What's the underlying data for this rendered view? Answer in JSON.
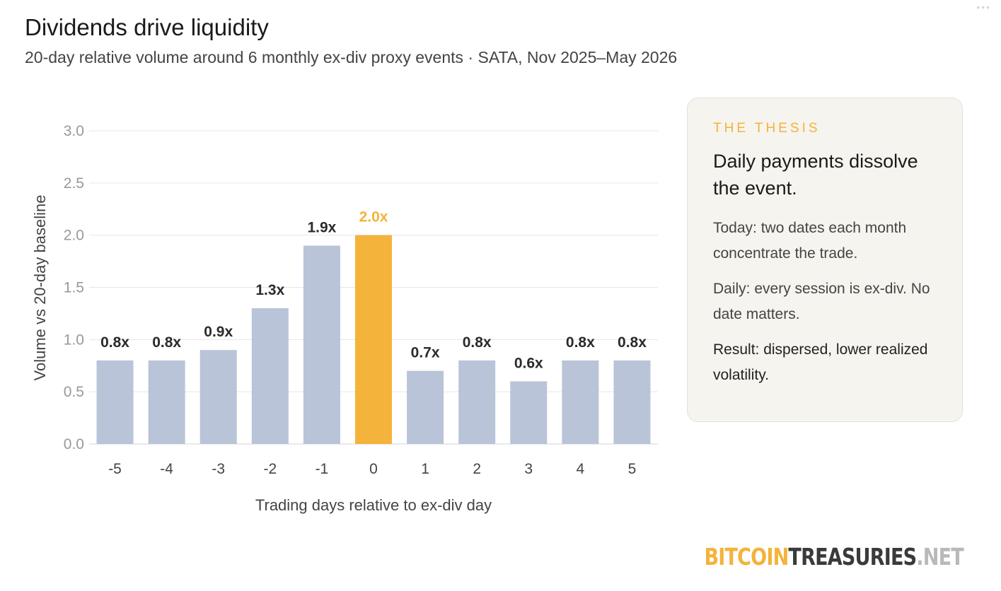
{
  "header": {
    "title": "Dividends drive liquidity",
    "subtitle": "20-day relative volume around 6 monthly ex-div proxy events · SATA, Nov 2025–May 2026"
  },
  "chart_data": {
    "type": "bar",
    "categories": [
      "-5",
      "-4",
      "-3",
      "-2",
      "-1",
      "0",
      "1",
      "2",
      "3",
      "4",
      "5"
    ],
    "values": [
      0.8,
      0.8,
      0.9,
      1.3,
      1.9,
      2.0,
      0.7,
      0.8,
      0.6,
      0.8,
      0.8
    ],
    "data_labels": [
      "0.8x",
      "0.8x",
      "0.9x",
      "1.3x",
      "1.9x",
      "2.0x",
      "0.7x",
      "0.8x",
      "0.6x",
      "0.8x",
      "0.8x"
    ],
    "highlight_category": "0",
    "xlabel": "Trading days relative to ex-div day",
    "ylabel": "Volume vs 20-day baseline",
    "ylim": [
      0,
      3.0
    ],
    "yticks": [
      "0.0",
      "0.5",
      "1.0",
      "1.5",
      "2.0",
      "2.5",
      "3.0"
    ],
    "grid": true,
    "colors": {
      "bar": "#b9c4d8",
      "highlight": "#f4b33a",
      "grid": "#e6e6e6"
    }
  },
  "thesis": {
    "eyebrow": "THE THESIS",
    "headline": "Daily payments dissolve the event.",
    "para1": "Today: two dates each month concentrate the trade.",
    "para2": "Daily: every session is ex-div. No date matters.",
    "para3": "Result: dispersed, lower realized volatility."
  },
  "brand": {
    "part1": "BITCOIN",
    "part2": "TREASURIES",
    "part3": ".NET",
    "colors": {
      "accent": "#f4b33a",
      "dark": "#3a3a3a",
      "muted": "#b9b9b9"
    }
  },
  "window_controls": {
    "dots": "•••"
  }
}
